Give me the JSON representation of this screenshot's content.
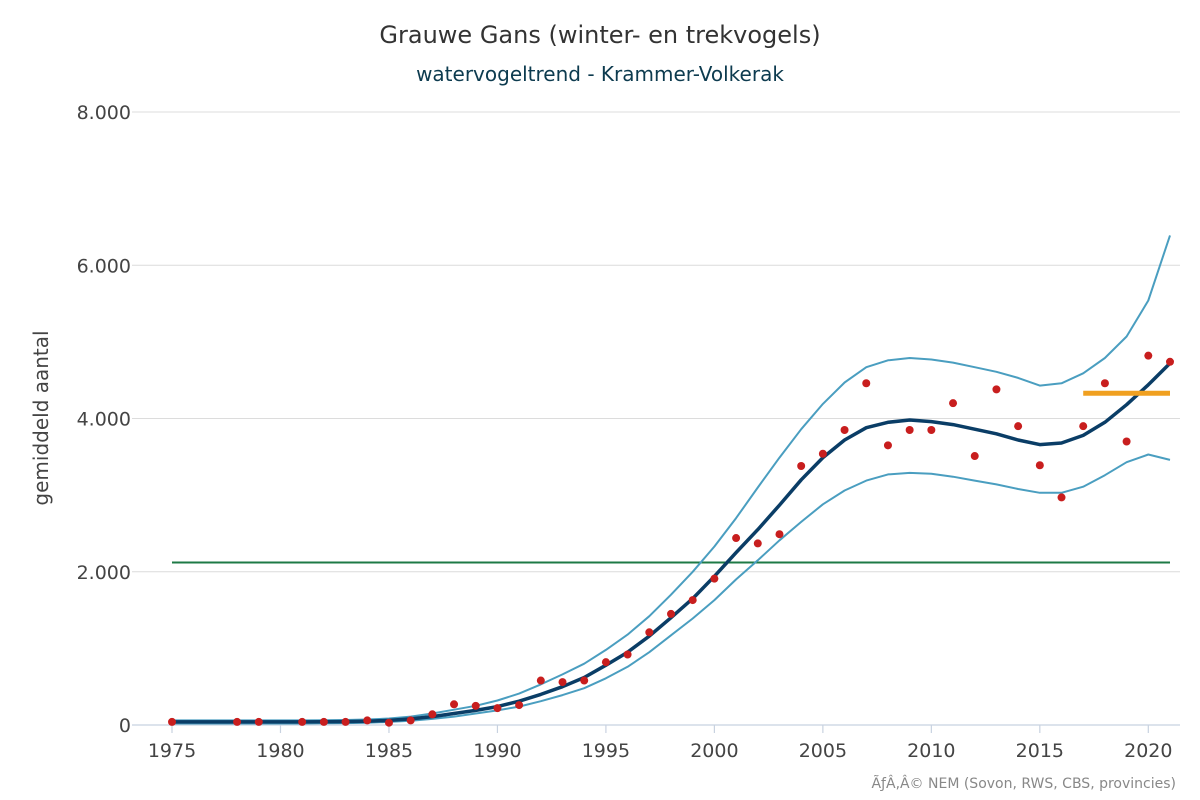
{
  "chart_data": {
    "type": "line",
    "title": "Grauwe Gans (winter- en trekvogels)",
    "subtitle": "watervogeltrend - Krammer-Volkerak",
    "ylabel": "gemiddeld aantal",
    "xlim": [
      1975,
      2021
    ],
    "ylim": [
      0,
      8000
    ],
    "yticks": [
      0,
      2000,
      4000,
      6000,
      8000
    ],
    "ytick_labels": [
      "0",
      "2.000",
      "4.000",
      "6.000",
      "8.000"
    ],
    "xticks": [
      1975,
      1980,
      1985,
      1990,
      1995,
      2000,
      2005,
      2010,
      2015,
      2020
    ],
    "xtick_labels": [
      "1975",
      "1980",
      "1985",
      "1990",
      "1995",
      "2000",
      "2005",
      "2010",
      "2015",
      "2020"
    ],
    "grid": true,
    "credit": "ÃƒÂ‚Â© NEM (Sovon, RWS, CBS, provincies)",
    "colors": {
      "trend": "#0a3d66",
      "ci": "#4a9ec0",
      "points": "#c81e1e",
      "reference": "#1e7a46",
      "recent_mean": "#f0a020"
    },
    "reference_line": {
      "y": 2120,
      "x": [
        1975,
        2021
      ]
    },
    "recent_mean_line": {
      "y": 4330,
      "x": [
        2017,
        2021
      ]
    },
    "trend": {
      "x": [
        1975,
        1976,
        1977,
        1978,
        1979,
        1980,
        1981,
        1982,
        1983,
        1984,
        1985,
        1986,
        1987,
        1988,
        1989,
        1990,
        1991,
        1992,
        1993,
        1994,
        1995,
        1996,
        1997,
        1998,
        1999,
        2000,
        2001,
        2002,
        2003,
        2004,
        2005,
        2006,
        2007,
        2008,
        2009,
        2010,
        2011,
        2012,
        2013,
        2014,
        2015,
        2016,
        2017,
        2018,
        2019,
        2020,
        2021
      ],
      "y": [
        40,
        40,
        40,
        40,
        40,
        40,
        40,
        42,
        45,
        50,
        60,
        80,
        110,
        150,
        190,
        240,
        310,
        400,
        500,
        620,
        780,
        950,
        1160,
        1400,
        1650,
        1940,
        2250,
        2550,
        2870,
        3200,
        3490,
        3720,
        3880,
        3950,
        3980,
        3960,
        3920,
        3860,
        3800,
        3720,
        3660,
        3680,
        3780,
        3950,
        4180,
        4440,
        4720
      ]
    },
    "ci_upper": {
      "x": [
        1975,
        1976,
        1977,
        1978,
        1979,
        1980,
        1981,
        1982,
        1983,
        1984,
        1985,
        1986,
        1987,
        1988,
        1989,
        1990,
        1991,
        1992,
        1993,
        1994,
        1995,
        1996,
        1997,
        1998,
        1999,
        2000,
        2001,
        2002,
        2003,
        2004,
        2005,
        2006,
        2007,
        2008,
        2009,
        2010,
        2011,
        2012,
        2013,
        2014,
        2015,
        2016,
        2017,
        2018,
        2019,
        2020,
        2021
      ],
      "y": [
        60,
        60,
        60,
        60,
        60,
        60,
        60,
        62,
        65,
        72,
        85,
        110,
        150,
        200,
        250,
        320,
        410,
        530,
        660,
        800,
        980,
        1180,
        1420,
        1700,
        2000,
        2330,
        2700,
        3100,
        3490,
        3860,
        4190,
        4470,
        4670,
        4760,
        4790,
        4770,
        4730,
        4670,
        4610,
        4530,
        4430,
        4460,
        4590,
        4790,
        5070,
        5540,
        6390
      ]
    },
    "ci_lower": {
      "x": [
        1975,
        1976,
        1977,
        1978,
        1979,
        1980,
        1981,
        1982,
        1983,
        1984,
        1985,
        1986,
        1987,
        1988,
        1989,
        1990,
        1991,
        1992,
        1993,
        1994,
        1995,
        1996,
        1997,
        1998,
        1999,
        2000,
        2001,
        2002,
        2003,
        2004,
        2005,
        2006,
        2007,
        2008,
        2009,
        2010,
        2011,
        2012,
        2013,
        2014,
        2015,
        2016,
        2017,
        2018,
        2019,
        2020,
        2021
      ],
      "y": [
        20,
        20,
        20,
        20,
        20,
        20,
        20,
        22,
        25,
        30,
        40,
        55,
        80,
        110,
        150,
        190,
        240,
        310,
        390,
        480,
        610,
        760,
        950,
        1170,
        1390,
        1630,
        1900,
        2150,
        2410,
        2650,
        2880,
        3060,
        3190,
        3270,
        3290,
        3280,
        3240,
        3190,
        3140,
        3080,
        3030,
        3030,
        3110,
        3260,
        3430,
        3530,
        3460
      ]
    },
    "points": {
      "x": [
        1975,
        1978,
        1979,
        1981,
        1982,
        1983,
        1984,
        1985,
        1986,
        1987,
        1988,
        1989,
        1990,
        1991,
        1992,
        1993,
        1994,
        1995,
        1996,
        1997,
        1998,
        1999,
        2000,
        2001,
        2002,
        2003,
        2004,
        2005,
        2006,
        2007,
        2008,
        2009,
        2010,
        2011,
        2012,
        2013,
        2014,
        2015,
        2016,
        2017,
        2018,
        2019,
        2020,
        2021
      ],
      "y": [
        40,
        40,
        40,
        40,
        40,
        40,
        60,
        30,
        60,
        140,
        270,
        250,
        220,
        260,
        580,
        560,
        580,
        820,
        920,
        1210,
        1450,
        1630,
        1910,
        2440,
        2370,
        2490,
        3380,
        3540,
        3850,
        4460,
        3650,
        3850,
        3850,
        4200,
        3510,
        4380,
        3900,
        3390,
        2970,
        3900,
        4460,
        3700,
        4820,
        4740
      ]
    }
  }
}
